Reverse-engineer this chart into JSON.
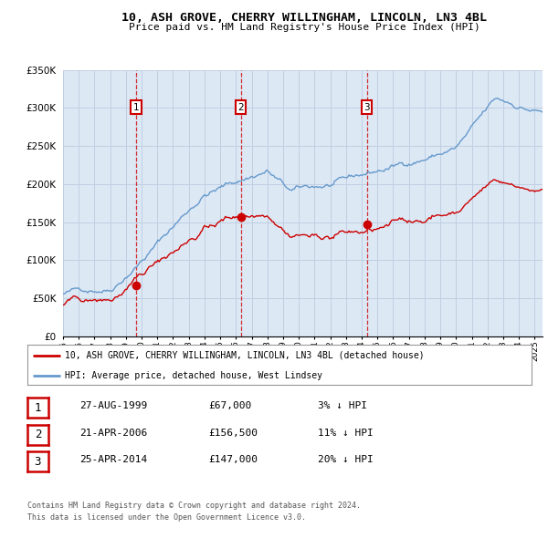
{
  "title": "10, ASH GROVE, CHERRY WILLINGHAM, LINCOLN, LN3 4BL",
  "subtitle": "Price paid vs. HM Land Registry's House Price Index (HPI)",
  "ylabel_ticks": [
    "£0",
    "£50K",
    "£100K",
    "£150K",
    "£200K",
    "£250K",
    "£300K",
    "£350K"
  ],
  "ytick_vals": [
    0,
    50000,
    100000,
    150000,
    200000,
    250000,
    300000,
    350000
  ],
  "xmin": 1995.0,
  "xmax": 2025.5,
  "ymin": 0,
  "ymax": 350000,
  "sale_dates": [
    1999.65,
    2006.3,
    2014.32
  ],
  "sale_prices": [
    67000,
    156500,
    147000
  ],
  "sale_labels": [
    "1",
    "2",
    "3"
  ],
  "sale_date_strs": [
    "27-AUG-1999",
    "21-APR-2006",
    "25-APR-2014"
  ],
  "sale_price_strs": [
    "£67,000",
    "£156,500",
    "£147,000"
  ],
  "sale_pct_strs": [
    "3% ↓ HPI",
    "11% ↓ HPI",
    "20% ↓ HPI"
  ],
  "legend_property": "10, ASH GROVE, CHERRY WILLINGHAM, LINCOLN, LN3 4BL (detached house)",
  "legend_hpi": "HPI: Average price, detached house, West Lindsey",
  "footer1": "Contains HM Land Registry data © Crown copyright and database right 2024.",
  "footer2": "This data is licensed under the Open Government Licence v3.0.",
  "line_color_property": "#cc0000",
  "line_color_hpi": "#6699cc",
  "chart_bg_color": "#dde8f5",
  "bg_color": "#ffffff",
  "grid_color": "#c0cfe0"
}
